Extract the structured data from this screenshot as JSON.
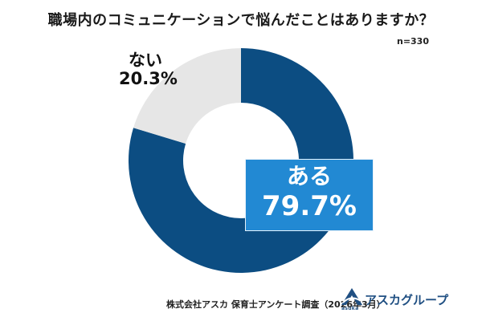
{
  "title": "職場内のコミュニケーションで悩んだことはありますか？",
  "sample_size": "n=330",
  "source": "株式会社アスカ 保育士アンケート調査（2026年3月）",
  "logo": {
    "text": "アスカグループ",
    "sub": "asuka",
    "icon": "asuka-logo-icon"
  },
  "colors": {
    "aru": "#0c4d82",
    "nai": "#e6e6e6",
    "callout": "#2289d3"
  },
  "chart_data": {
    "type": "pie",
    "title": "職場内のコミュニケーションで悩んだことはありますか？",
    "donut": true,
    "categories": [
      "ある",
      "ない"
    ],
    "values": [
      79.7,
      20.3
    ],
    "value_labels": [
      "79.7%",
      "20.3%"
    ],
    "unit": "%",
    "colors": [
      "#0c4d82",
      "#e6e6e6"
    ],
    "legend": "none"
  }
}
